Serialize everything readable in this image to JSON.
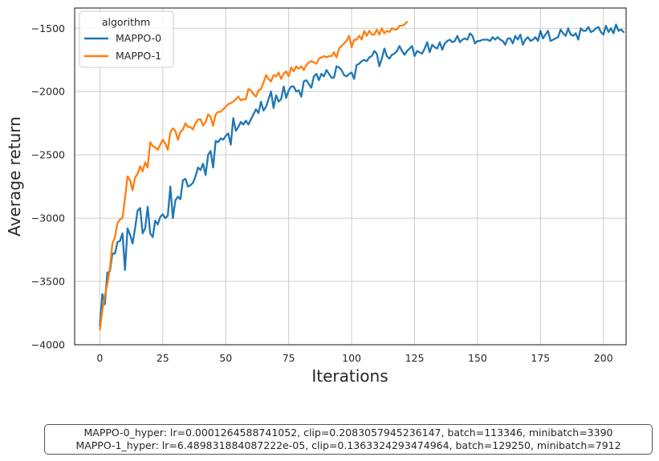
{
  "chart_data": {
    "type": "line",
    "title": "",
    "xlabel": "Iterations",
    "ylabel": "Average return",
    "xlim": [
      -10,
      209
    ],
    "ylim": [
      -4000,
      -1340
    ],
    "xticks": [
      0,
      25,
      50,
      75,
      100,
      125,
      150,
      175,
      200
    ],
    "yticks": [
      -4000,
      -3500,
      -3000,
      -2500,
      -2000,
      -1500
    ],
    "xtick_labels": [
      "0",
      "25",
      "50",
      "75",
      "100",
      "125",
      "150",
      "175",
      "200"
    ],
    "ytick_labels": [
      "−4000",
      "−3500",
      "−3000",
      "−2500",
      "−2000",
      "−1500"
    ],
    "grid": true,
    "legend": {
      "title": "algorithm",
      "placement": "top-left"
    },
    "series": [
      {
        "name": "MAPPO-0",
        "color": "#1f77b4",
        "x_start": 0,
        "values": [
          -3850,
          -3600,
          -3680,
          -3430,
          -3420,
          -3280,
          -3280,
          -3190,
          -3180,
          -3120,
          -3410,
          -3080,
          -3130,
          -3200,
          -3080,
          -2940,
          -2920,
          -3120,
          -3080,
          -2910,
          -3120,
          -3150,
          -3020,
          -3050,
          -2990,
          -2970,
          -3000,
          -2980,
          -2750,
          -3000,
          -2860,
          -2830,
          -2850,
          -2700,
          -2690,
          -2750,
          -2740,
          -2720,
          -2670,
          -2600,
          -2620,
          -2570,
          -2660,
          -2500,
          -2470,
          -2600,
          -2390,
          -2400,
          -2370,
          -2380,
          -2350,
          -2330,
          -2420,
          -2210,
          -2310,
          -2280,
          -2240,
          -2260,
          -2230,
          -2260,
          -2220,
          -2180,
          -2140,
          -2170,
          -2080,
          -2150,
          -2120,
          -2060,
          -2000,
          -2130,
          -2030,
          -2080,
          -2060,
          -1960,
          -2050,
          -1990,
          -1960,
          -1960,
          -2000,
          -1990,
          -2040,
          -1920,
          -1910,
          -1940,
          -1970,
          -1880,
          -1860,
          -1910,
          -1860,
          -1880,
          -1830,
          -1860,
          -1890,
          -1890,
          -1800,
          -1810,
          -1830,
          -1870,
          -1880,
          -1860,
          -1850,
          -1900,
          -1790,
          -1780,
          -1760,
          -1750,
          -1760,
          -1730,
          -1720,
          -1680,
          -1700,
          -1800,
          -1740,
          -1660,
          -1720,
          -1740,
          -1710,
          -1700,
          -1680,
          -1640,
          -1680,
          -1710,
          -1680,
          -1660,
          -1640,
          -1720,
          -1680,
          -1690,
          -1700,
          -1660,
          -1610,
          -1690,
          -1630,
          -1650,
          -1660,
          -1610,
          -1670,
          -1620,
          -1600,
          -1590,
          -1610,
          -1600,
          -1560,
          -1610,
          -1590,
          -1580,
          -1590,
          -1540,
          -1560,
          -1620,
          -1600,
          -1600,
          -1590,
          -1590,
          -1590,
          -1600,
          -1570,
          -1590,
          -1570,
          -1590,
          -1600,
          -1630,
          -1580,
          -1580,
          -1620,
          -1560,
          -1590,
          -1550,
          -1630,
          -1590,
          -1570,
          -1600,
          -1590,
          -1570,
          -1600,
          -1520,
          -1580,
          -1550,
          -1520,
          -1600,
          -1590,
          -1580,
          -1570,
          -1510,
          -1540,
          -1560,
          -1500,
          -1550,
          -1560,
          -1540,
          -1590,
          -1500,
          -1520,
          -1520,
          -1490,
          -1530,
          -1520,
          -1500,
          -1490,
          -1530,
          -1550,
          -1480,
          -1530,
          -1500,
          -1540,
          -1470,
          -1520,
          -1510,
          -1530
        ]
      },
      {
        "name": "MAPPO-1",
        "color": "#ff7f0e",
        "x_start": 0,
        "values": [
          -3880,
          -3730,
          -3610,
          -3520,
          -3400,
          -3200,
          -3150,
          -3040,
          -3010,
          -3000,
          -2840,
          -2670,
          -2700,
          -2780,
          -2680,
          -2650,
          -2590,
          -2630,
          -2560,
          -2600,
          -2400,
          -2430,
          -2440,
          -2460,
          -2420,
          -2380,
          -2410,
          -2460,
          -2320,
          -2290,
          -2310,
          -2380,
          -2320,
          -2300,
          -2250,
          -2280,
          -2280,
          -2300,
          -2250,
          -2220,
          -2220,
          -2270,
          -2240,
          -2180,
          -2200,
          -2270,
          -2180,
          -2160,
          -2160,
          -2140,
          -2120,
          -2100,
          -2090,
          -2080,
          -2060,
          -2040,
          -2070,
          -2060,
          -2060,
          -1980,
          -1990,
          -2020,
          -2040,
          -1990,
          -1980,
          -1930,
          -1870,
          -1900,
          -1920,
          -1870,
          -1880,
          -1850,
          -1900,
          -1860,
          -1840,
          -1880,
          -1810,
          -1840,
          -1800,
          -1820,
          -1800,
          -1830,
          -1790,
          -1770,
          -1760,
          -1770,
          -1780,
          -1740,
          -1730,
          -1720,
          -1730,
          -1720,
          -1720,
          -1690,
          -1730,
          -1660,
          -1640,
          -1620,
          -1600,
          -1560,
          -1650,
          -1590,
          -1590,
          -1560,
          -1590,
          -1520,
          -1560,
          -1520,
          -1550,
          -1550,
          -1510,
          -1550,
          -1500,
          -1540,
          -1520,
          -1530,
          -1500,
          -1510,
          -1510,
          -1480,
          -1480,
          -1470,
          -1450
        ]
      }
    ]
  },
  "hyper_text": {
    "line1": "MAPPO-0_hyper: lr=0.0001264588741052, clip=0.2083057945236147, batch=113346, minibatch=3390",
    "line2": "MAPPO-1_hyper: lr=6.489831884087222e-05, clip=0.1363324293474964, batch=129250, minibatch=7912"
  }
}
